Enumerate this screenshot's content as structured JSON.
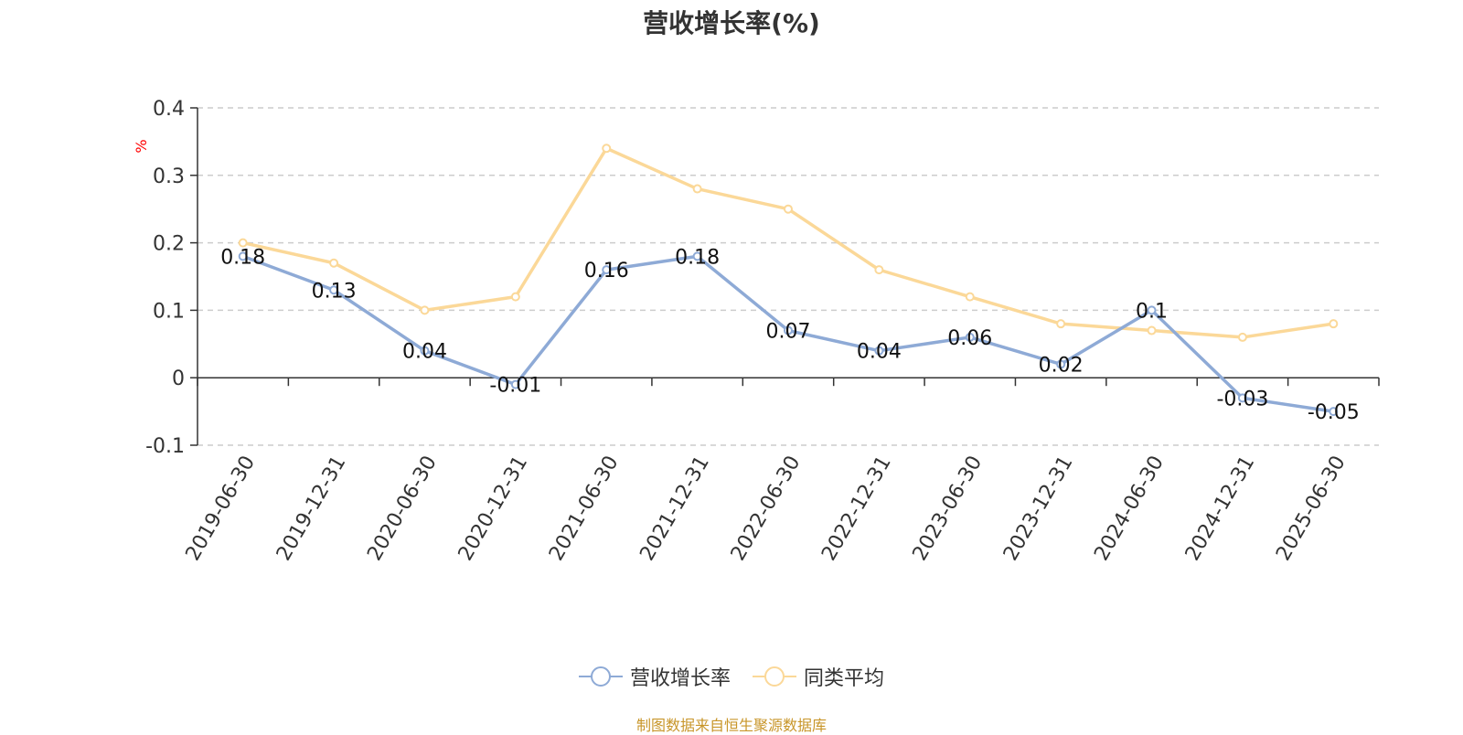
{
  "chart_data": {
    "type": "line",
    "title": "营收增长率(%)",
    "ylabel": "%",
    "xlabel": "",
    "ylim": [
      -0.1,
      0.4
    ],
    "yticks": [
      "0.4",
      "0.3",
      "0.2",
      "0.1",
      "0",
      "-0.1"
    ],
    "grid": true,
    "legend_position": "bottom",
    "categories": [
      "2019-06-30",
      "2019-12-31",
      "2020-06-30",
      "2020-12-31",
      "2021-06-30",
      "2021-12-31",
      "2022-06-30",
      "2022-12-31",
      "2023-06-30",
      "2023-12-31",
      "2024-06-30",
      "2024-12-31",
      "2025-06-30"
    ],
    "series": [
      {
        "name": "营收增长率",
        "color": "#8eaad6",
        "values": [
          0.18,
          0.13,
          0.04,
          -0.01,
          0.16,
          0.18,
          0.07,
          0.04,
          0.06,
          0.02,
          0.1,
          -0.03,
          -0.05
        ],
        "labels": [
          "0.18",
          "0.13",
          "0.04",
          "-0.01",
          "0.16",
          "0.18",
          "0.07",
          "0.04",
          "0.06",
          "0.02",
          "0.1",
          "-0.03",
          "-0.05"
        ]
      },
      {
        "name": "同类平均",
        "color": "#fbd898",
        "values": [
          0.2,
          0.17,
          0.1,
          0.12,
          0.34,
          0.28,
          0.25,
          0.16,
          0.12,
          0.08,
          0.07,
          0.06,
          0.08
        ]
      }
    ]
  },
  "source_note": "制图数据来自恒生聚源数据库"
}
